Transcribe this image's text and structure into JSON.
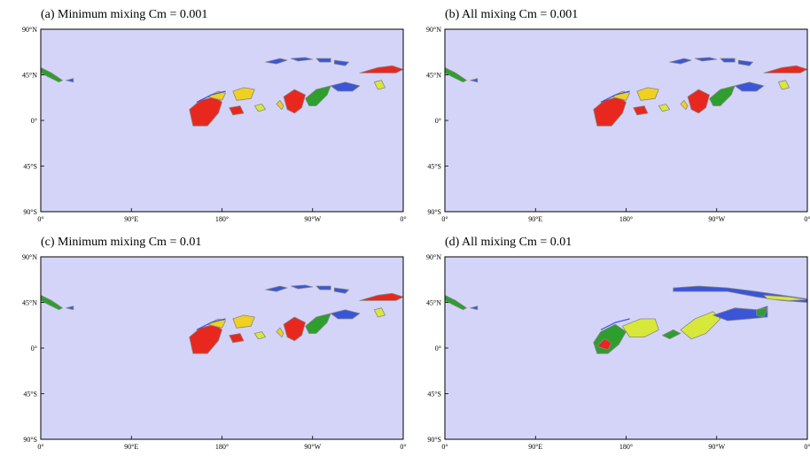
{
  "chart_data": [
    {
      "type": "heatmap",
      "title": "(a) Minimum mixing  Cm = 0.001",
      "ylabels": [
        "90°N",
        "45°N",
        "0°",
        "45°S",
        "90°S"
      ],
      "xlabels": [
        "0°",
        "90°E",
        "180°",
        "90°W",
        "0°"
      ],
      "background_color": "#d4d4f8",
      "features": [
        {
          "lon": 162,
          "lat": 8,
          "intensity": "high"
        },
        {
          "lon": 182,
          "lat": 18,
          "intensity": "medium"
        },
        {
          "lon": 200,
          "lat": 12,
          "intensity": "medium"
        },
        {
          "lon": 255,
          "lat": 22,
          "intensity": "high"
        },
        {
          "lon": 320,
          "lat": 50,
          "intensity": "high"
        }
      ]
    },
    {
      "type": "heatmap",
      "title": "(b) All mixing  Cm = 0.001",
      "ylabels": [
        "90°N",
        "45°N",
        "0°",
        "45°S",
        "90°S"
      ],
      "xlabels": [
        "0°",
        "90°E",
        "180°",
        "90°W",
        "0°"
      ],
      "background_color": "#d4d4f8",
      "features": [
        {
          "lon": 162,
          "lat": 8,
          "intensity": "high"
        },
        {
          "lon": 182,
          "lat": 18,
          "intensity": "medium"
        },
        {
          "lon": 200,
          "lat": 12,
          "intensity": "medium"
        },
        {
          "lon": 255,
          "lat": 22,
          "intensity": "high"
        },
        {
          "lon": 320,
          "lat": 50,
          "intensity": "high"
        }
      ]
    },
    {
      "type": "heatmap",
      "title": "(c) Minimum mixing  Cm = 0.01",
      "ylabels": [
        "90°N",
        "45°N",
        "0°",
        "45°S",
        "90°S"
      ],
      "xlabels": [
        "0°",
        "90°E",
        "180°",
        "90°W",
        "0°"
      ],
      "background_color": "#d4d4f8",
      "features": [
        {
          "lon": 162,
          "lat": 8,
          "intensity": "high"
        },
        {
          "lon": 182,
          "lat": 18,
          "intensity": "medium"
        },
        {
          "lon": 200,
          "lat": 12,
          "intensity": "medium"
        },
        {
          "lon": 255,
          "lat": 22,
          "intensity": "high"
        },
        {
          "lon": 320,
          "lat": 50,
          "intensity": "high"
        }
      ]
    },
    {
      "type": "heatmap",
      "title": "(d) All mixing  Cm = 0.01",
      "ylabels": [
        "90°N",
        "45°N",
        "0°",
        "45°S",
        "90°S"
      ],
      "xlabels": [
        "0°",
        "90°E",
        "180°",
        "90°W",
        "0°"
      ],
      "background_color": "#d4d4f8",
      "features": [
        {
          "lon": 162,
          "lat": 8,
          "intensity": "high"
        },
        {
          "lon": 180,
          "lat": 12,
          "intensity": "low"
        },
        {
          "lon": 250,
          "lat": 22,
          "intensity": "medium"
        },
        {
          "lon": 300,
          "lat": 32,
          "intensity": "low"
        },
        {
          "lon": 330,
          "lat": 50,
          "intensity": "low"
        }
      ]
    }
  ],
  "colors": {
    "background": "#d4d4f8",
    "low": "#3a55d8",
    "mid": "#2e9e2e",
    "midhigh": "#d8e83a",
    "high": "#f0d020",
    "max": "#e8281e",
    "contour": "#888888"
  }
}
